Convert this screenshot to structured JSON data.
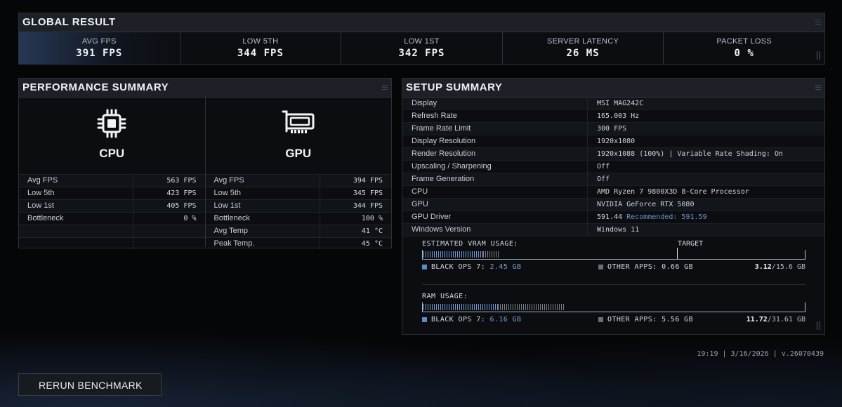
{
  "global": {
    "title": "GLOBAL RESULT",
    "stats": [
      {
        "label": "AVG FPS",
        "value": "391 FPS"
      },
      {
        "label": "LOW 5TH",
        "value": "344 FPS"
      },
      {
        "label": "LOW 1ST",
        "value": "342 FPS"
      },
      {
        "label": "SERVER LATENCY",
        "value": "26 MS"
      },
      {
        "label": "PACKET LOSS",
        "value": "0 %"
      }
    ]
  },
  "performance": {
    "title": "PERFORMANCE SUMMARY",
    "cpu": {
      "name": "CPU",
      "icon": "cpu-icon",
      "rows": [
        {
          "label": "Avg FPS",
          "value": "563 FPS"
        },
        {
          "label": "Low 5th",
          "value": "423 FPS"
        },
        {
          "label": "Low 1st",
          "value": "405 FPS"
        },
        {
          "label": "Bottleneck",
          "value": "0 %"
        }
      ]
    },
    "gpu": {
      "name": "GPU",
      "icon": "gpu-icon",
      "rows": [
        {
          "label": "Avg FPS",
          "value": "394 FPS"
        },
        {
          "label": "Low 5th",
          "value": "345 FPS"
        },
        {
          "label": "Low 1st",
          "value": "344 FPS"
        },
        {
          "label": "Bottleneck",
          "value": "100 %"
        },
        {
          "label": "Avg Temp",
          "value": "41 °C"
        },
        {
          "label": "Peak Temp.",
          "value": "45 °C"
        }
      ]
    }
  },
  "setup": {
    "title": "SETUP SUMMARY",
    "rows": [
      {
        "label": "Display",
        "value": "MSI MAG242C"
      },
      {
        "label": "Refresh Rate",
        "value": "165.003 Hz"
      },
      {
        "label": "Frame Rate Limit",
        "value": "300 FPS"
      },
      {
        "label": "Display Resolution",
        "value": "1920x1080"
      },
      {
        "label": "Render Resolution",
        "value": "1920x1088 (100%) | Variable Rate Shading: On"
      },
      {
        "label": "Upscaling / Sharpening",
        "value": "Off"
      },
      {
        "label": "Frame Generation",
        "value": "Off"
      },
      {
        "label": "CPU",
        "value": "AMD Ryzen 7 9800X3D 8-Core Processor"
      },
      {
        "label": "GPU",
        "value": "NVIDIA GeForce RTX 5080"
      },
      {
        "label": "GPU Driver",
        "value": "591.44",
        "extra": "Recommended: 591.59"
      },
      {
        "label": "Windows Version",
        "value": "Windows 11"
      }
    ],
    "vram": {
      "title": "ESTIMATED VRAM USAGE:",
      "target_label": "TARGET",
      "game_label": "BLACK OPS 7:",
      "game_value": "2.45 GB",
      "game_gb": 2.45,
      "other_label": "OTHER APPS:",
      "other_value": "0.66 GB",
      "other_gb": 0.66,
      "total_used": "3.12",
      "total_cap": "/15.6 GB",
      "capacity_gb": 15.6,
      "target_fraction": 0.67,
      "game_color": "#6f9ad4",
      "other_color": "#7c8087"
    },
    "ram": {
      "title": "RAM USAGE:",
      "game_label": "BLACK OPS 7:",
      "game_value": "6.16 GB",
      "game_gb": 6.16,
      "other_label": "OTHER APPS:",
      "other_value": "5.56 GB",
      "other_gb": 5.56,
      "total_used": "11.72",
      "total_cap": "/31.61 GB",
      "capacity_gb": 31.61
    }
  },
  "footer": {
    "info": "19:19 | 3/16/2026 | v.26070439",
    "rerun_label": "RERUN BENCHMARK"
  }
}
